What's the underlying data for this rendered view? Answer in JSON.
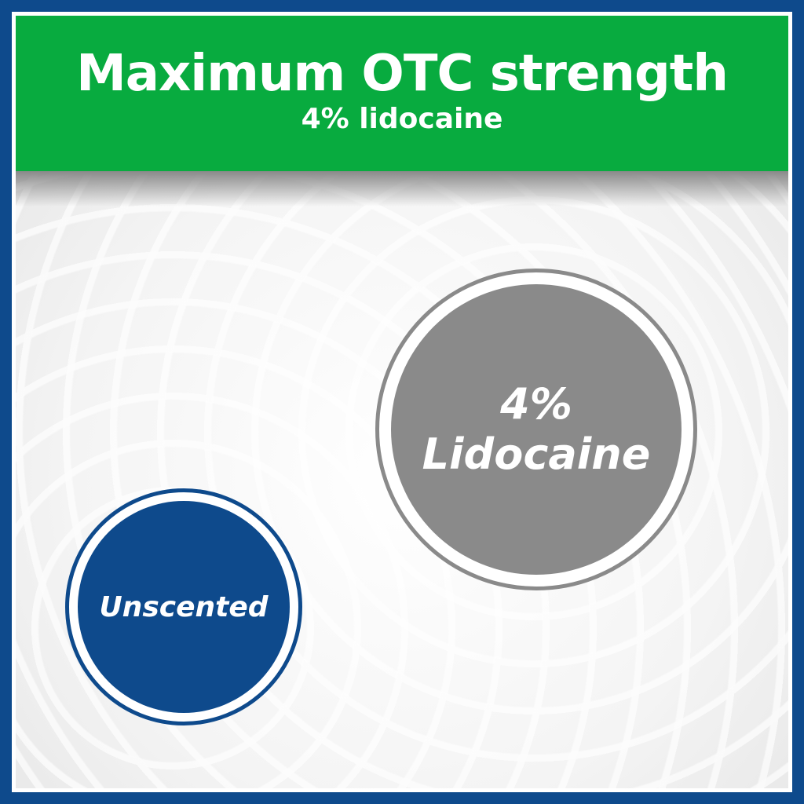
{
  "banner": {
    "title": "Maximum OTC strength",
    "subtitle": "4% lidocaine"
  },
  "badges": {
    "strength": {
      "line1": "4%",
      "line2": "Lidocaine"
    },
    "scent": {
      "label": "Unscented"
    }
  },
  "colors": {
    "border": "#0e4a8c",
    "banner": "#08ab3f",
    "strength_badge": "#8a8a8a",
    "scent_badge": "#0e4a8c"
  }
}
